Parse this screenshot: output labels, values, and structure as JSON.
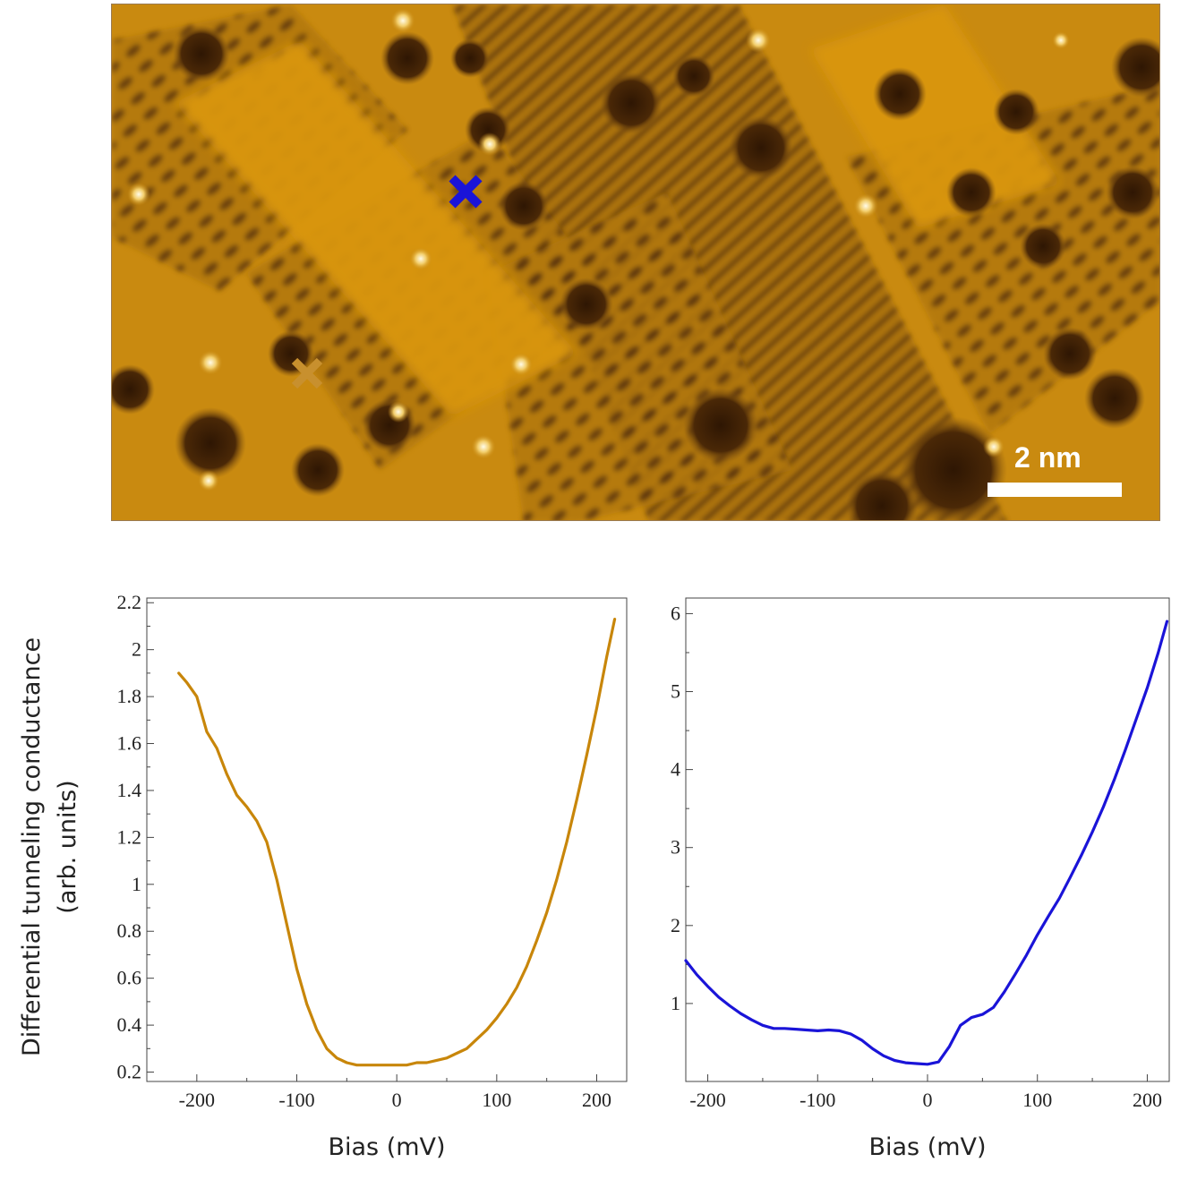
{
  "image": {
    "scale_bar_label": "2 nm",
    "palette": {
      "base": "#c98a10",
      "dark": "#3a1e05",
      "mid": "#8a5a12",
      "bright": "#f0c050",
      "spot": "#fff6d8"
    },
    "markers": [
      {
        "name": "orange-cross-marker",
        "color": "#c8902e",
        "shape": "cross"
      },
      {
        "name": "blue-cross-marker",
        "color": "#1a14d8",
        "shape": "cross"
      }
    ]
  },
  "y_axis_title_line1": "Differential tunneling conductance",
  "y_axis_title_line2": "(arb. units)",
  "chart_data": [
    {
      "type": "line",
      "name": "left-panel",
      "color": "#c8860a",
      "xlabel": "Bias (mV)",
      "ylabel": "Differential tunneling conductance (arb. units)",
      "xlim": [
        -250,
        230
      ],
      "ylim": [
        0.16,
        2.22
      ],
      "xticks": [
        -200,
        -100,
        0,
        100,
        200
      ],
      "xtick_labels": [
        "-200",
        "-100",
        "0",
        "100",
        "200"
      ],
      "yticks": [
        0.2,
        0.4,
        0.6,
        0.8,
        1,
        1.2,
        1.4,
        1.6,
        1.8,
        2,
        2.2
      ],
      "ytick_labels": [
        "0.2",
        "0.4",
        "0.6",
        "0.8",
        "1",
        "1.2",
        "1.4",
        "1.6",
        "1.8",
        "2",
        "2.2"
      ],
      "x": [
        -218,
        -210,
        -200,
        -190,
        -180,
        -170,
        -160,
        -150,
        -140,
        -130,
        -120,
        -110,
        -100,
        -90,
        -80,
        -70,
        -60,
        -50,
        -40,
        -30,
        -20,
        -10,
        0,
        10,
        20,
        30,
        40,
        50,
        60,
        70,
        80,
        90,
        100,
        110,
        120,
        130,
        140,
        150,
        160,
        170,
        180,
        190,
        200,
        210,
        218
      ],
      "y": [
        1.9,
        1.86,
        1.8,
        1.65,
        1.58,
        1.47,
        1.38,
        1.33,
        1.27,
        1.18,
        1.02,
        0.83,
        0.64,
        0.49,
        0.38,
        0.3,
        0.26,
        0.24,
        0.23,
        0.23,
        0.23,
        0.23,
        0.23,
        0.23,
        0.24,
        0.24,
        0.25,
        0.26,
        0.28,
        0.3,
        0.34,
        0.38,
        0.43,
        0.49,
        0.56,
        0.65,
        0.76,
        0.88,
        1.02,
        1.18,
        1.36,
        1.55,
        1.75,
        1.97,
        2.13
      ]
    },
    {
      "type": "line",
      "name": "right-panel",
      "color": "#1a14d8",
      "xlabel": "Bias (mV)",
      "ylabel": "",
      "xlim": [
        -220,
        220
      ],
      "ylim": [
        0,
        6.2
      ],
      "xticks": [
        -200,
        -100,
        0,
        100,
        200
      ],
      "xtick_labels": [
        "-200",
        "-100",
        "0",
        "100",
        "200"
      ],
      "yticks": [
        1,
        2,
        3,
        4,
        5,
        6
      ],
      "ytick_labels": [
        "1",
        "2",
        "3",
        "4",
        "5",
        "6"
      ],
      "x": [
        -220,
        -210,
        -200,
        -190,
        -180,
        -170,
        -160,
        -150,
        -140,
        -130,
        -120,
        -110,
        -100,
        -90,
        -80,
        -70,
        -60,
        -50,
        -40,
        -30,
        -20,
        -10,
        0,
        10,
        20,
        30,
        40,
        50,
        60,
        70,
        80,
        90,
        100,
        110,
        120,
        130,
        140,
        150,
        160,
        170,
        180,
        190,
        200,
        210,
        218
      ],
      "y": [
        1.55,
        1.37,
        1.22,
        1.08,
        0.97,
        0.87,
        0.79,
        0.72,
        0.68,
        0.68,
        0.67,
        0.66,
        0.65,
        0.66,
        0.65,
        0.61,
        0.53,
        0.42,
        0.33,
        0.27,
        0.24,
        0.23,
        0.22,
        0.25,
        0.45,
        0.72,
        0.82,
        0.86,
        0.95,
        1.15,
        1.38,
        1.62,
        1.88,
        2.12,
        2.35,
        2.62,
        2.9,
        3.2,
        3.52,
        3.87,
        4.25,
        4.65,
        5.05,
        5.5,
        5.9
      ]
    }
  ]
}
